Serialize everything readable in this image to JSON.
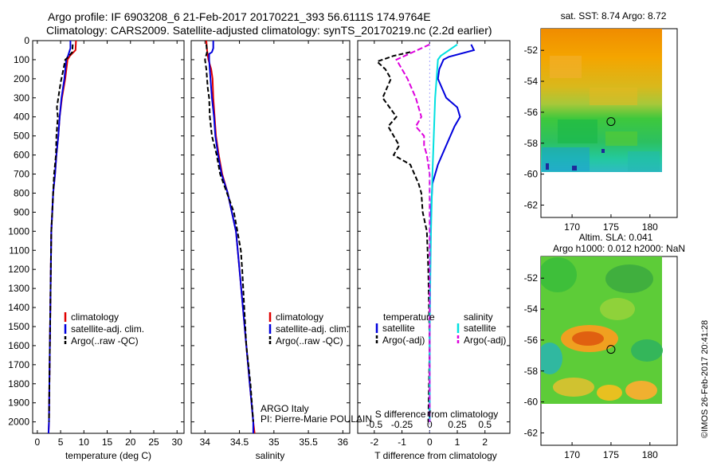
{
  "header": {
    "line1": "Argo profile: IF 6903208_6 21-Feb-2017 20170221_393 56.6111S 174.9764E",
    "line2": "Climatology: CARS2009. Satellite-adjusted climatology: synTS_20170219.nc (2.2d earlier)"
  },
  "colors": {
    "climatology": "#e00000",
    "satellite": "#0000dd",
    "argo": "#000000",
    "sal_satellite": "#00e0e0",
    "sal_argo": "#dd00dd"
  },
  "credit": "©IMOS 26-Feb-2017 20:41:28",
  "float_info": {
    "line1": "ARGO Italy",
    "line2": "PI: Pierre-Marie POULAIN"
  },
  "chart_data": [
    {
      "id": "temperature",
      "type": "line",
      "xlabel": "temperature (deg C)",
      "xlim": [
        -1,
        31.5
      ],
      "xticks": [
        0,
        5,
        10,
        15,
        20,
        25,
        30
      ],
      "ylim": [
        0,
        2060
      ],
      "yticks": [
        0,
        100,
        200,
        300,
        400,
        500,
        600,
        700,
        800,
        900,
        1000,
        1100,
        1200,
        1300,
        1400,
        1500,
        1600,
        1700,
        1800,
        1900,
        2000
      ],
      "legend": [
        "climatology",
        "satellite-adj. clim.",
        "Argo(..raw -QC)"
      ],
      "series": [
        {
          "name": "climatology",
          "color": "red",
          "points": [
            [
              8.3,
              0
            ],
            [
              8.2,
              50
            ],
            [
              7.0,
              80
            ],
            [
              6.5,
              100
            ],
            [
              6.0,
              200
            ],
            [
              5.3,
              300
            ],
            [
              4.8,
              400
            ],
            [
              4.5,
              500
            ],
            [
              4.1,
              600
            ],
            [
              3.8,
              700
            ],
            [
              3.4,
              800
            ],
            [
              3.2,
              900
            ],
            [
              3.0,
              1000
            ],
            [
              2.9,
              1200
            ],
            [
              2.8,
              1400
            ],
            [
              2.7,
              1600
            ],
            [
              2.6,
              1800
            ],
            [
              2.5,
              2000
            ],
            [
              2.4,
              2060
            ]
          ]
        },
        {
          "name": "satellite-adj. clim.",
          "color": "blue",
          "points": [
            [
              7.1,
              0
            ],
            [
              7.1,
              40
            ],
            [
              6.6,
              80
            ],
            [
              6.2,
              100
            ],
            [
              5.8,
              200
            ],
            [
              5.2,
              300
            ],
            [
              4.8,
              400
            ],
            [
              4.5,
              500
            ],
            [
              4.1,
              600
            ],
            [
              3.8,
              700
            ],
            [
              3.4,
              800
            ],
            [
              3.2,
              900
            ],
            [
              3.0,
              1000
            ],
            [
              2.9,
              1200
            ],
            [
              2.8,
              1400
            ],
            [
              2.7,
              1600
            ],
            [
              2.6,
              1800
            ],
            [
              2.5,
              2000
            ],
            [
              2.4,
              2060
            ]
          ]
        },
        {
          "name": "Argo(..raw -QC)",
          "color": "black",
          "points": [
            [
              7.6,
              20
            ],
            [
              7.5,
              60
            ],
            [
              6.5,
              90
            ],
            [
              6.0,
              100
            ],
            [
              5.6,
              150
            ],
            [
              5.0,
              220
            ],
            [
              4.5,
              300
            ],
            [
              4.2,
              350
            ],
            [
              4.4,
              400
            ],
            [
              4.1,
              500
            ],
            [
              4.0,
              600
            ],
            [
              3.6,
              700
            ],
            [
              3.4,
              800
            ],
            [
              3.2,
              900
            ],
            [
              3.0,
              1000
            ],
            [
              2.9,
              1200
            ],
            [
              2.8,
              1400
            ],
            [
              2.7,
              1600
            ],
            [
              2.6,
              1800
            ],
            [
              2.5,
              2000
            ]
          ]
        }
      ]
    },
    {
      "id": "salinity",
      "type": "line",
      "xlabel": "salinity",
      "xlim": [
        33.8,
        36.1
      ],
      "xticks": [
        34,
        34.5,
        35,
        35.5,
        36
      ],
      "ylim": [
        0,
        2060
      ],
      "legend": [
        "climatology",
        "satellite-adj. clim.",
        "Argo(..raw -QC)"
      ],
      "series": [
        {
          "name": "climatology",
          "color": "red",
          "points": [
            [
              34.02,
              0
            ],
            [
              34.03,
              50
            ],
            [
              34.05,
              100
            ],
            [
              34.09,
              150
            ],
            [
              34.11,
              200
            ],
            [
              34.12,
              300
            ],
            [
              34.14,
              400
            ],
            [
              34.16,
              500
            ],
            [
              34.2,
              600
            ],
            [
              34.25,
              700
            ],
            [
              34.33,
              800
            ],
            [
              34.39,
              900
            ],
            [
              34.45,
              1000
            ],
            [
              34.5,
              1200
            ],
            [
              34.55,
              1400
            ],
            [
              34.6,
              1600
            ],
            [
              34.65,
              1800
            ],
            [
              34.7,
              2000
            ],
            [
              34.72,
              2060
            ]
          ]
        },
        {
          "name": "satellite-adj. clim.",
          "color": "blue",
          "points": [
            [
              34.12,
              0
            ],
            [
              34.12,
              40
            ],
            [
              34.1,
              60
            ],
            [
              34.06,
              70
            ],
            [
              34.06,
              100
            ],
            [
              34.08,
              200
            ],
            [
              34.1,
              300
            ],
            [
              34.13,
              400
            ],
            [
              34.15,
              500
            ],
            [
              34.19,
              600
            ],
            [
              34.24,
              700
            ],
            [
              34.33,
              800
            ],
            [
              34.39,
              900
            ],
            [
              34.45,
              1000
            ],
            [
              34.5,
              1200
            ],
            [
              34.55,
              1400
            ],
            [
              34.6,
              1600
            ],
            [
              34.65,
              1800
            ],
            [
              34.7,
              2000
            ],
            [
              34.7,
              2060
            ]
          ]
        },
        {
          "name": "Argo(..raw -QC)",
          "color": "black",
          "points": [
            [
              34.02,
              20
            ],
            [
              34.03,
              60
            ],
            [
              34.0,
              100
            ],
            [
              34.02,
              150
            ],
            [
              34.04,
              250
            ],
            [
              34.06,
              300
            ],
            [
              34.07,
              400
            ],
            [
              34.1,
              500
            ],
            [
              34.17,
              600
            ],
            [
              34.22,
              700
            ],
            [
              34.32,
              800
            ],
            [
              34.42,
              900
            ],
            [
              34.47,
              1000
            ],
            [
              34.52,
              1100
            ],
            [
              34.54,
              1200
            ],
            [
              34.57,
              1400
            ],
            [
              34.6,
              1600
            ],
            [
              34.66,
              1800
            ],
            [
              34.7,
              2000
            ]
          ]
        }
      ]
    },
    {
      "id": "difference",
      "type": "line",
      "xlabel": "T difference from climatology",
      "xlabel_top": "S difference from climatology",
      "xlim": [
        -2.6,
        2.9
      ],
      "xticks": [
        -2,
        -1,
        0,
        1,
        2
      ],
      "xlim_top": [
        -0.65,
        0.725
      ],
      "xticks_top": [
        -0.5,
        -0.25,
        0,
        0.25,
        0.5
      ],
      "ylim": [
        0,
        2060
      ],
      "legend_group_left": "temperature",
      "legend_group_right": "salinity",
      "legend": [
        "satellite",
        "Argo(-adj)",
        "satellite",
        "Argo(-adj)"
      ],
      "series": [
        {
          "name": "temperature satellite",
          "color": "blue",
          "points": [
            [
              1.5,
              20
            ],
            [
              1.6,
              50
            ],
            [
              0.7,
              85
            ],
            [
              0.5,
              100
            ],
            [
              0.35,
              150
            ],
            [
              0.3,
              200
            ],
            [
              0.6,
              300
            ],
            [
              1.0,
              350
            ],
            [
              1.1,
              400
            ],
            [
              0.9,
              450
            ],
            [
              0.6,
              550
            ],
            [
              0.3,
              650
            ],
            [
              0.1,
              750
            ],
            [
              0.05,
              900
            ],
            [
              0.02,
              1200
            ],
            [
              0.0,
              1600
            ],
            [
              0.0,
              2000
            ]
          ]
        },
        {
          "name": "temperature Argo(-adj)",
          "color": "black",
          "points": [
            [
              -0.7,
              60
            ],
            [
              -1.3,
              80
            ],
            [
              -1.9,
              110
            ],
            [
              -1.6,
              150
            ],
            [
              -1.4,
              200
            ],
            [
              -1.7,
              300
            ],
            [
              -1.2,
              400
            ],
            [
              -1.5,
              450
            ],
            [
              -1.1,
              550
            ],
            [
              -1.3,
              600
            ],
            [
              -0.7,
              650
            ],
            [
              -0.4,
              750
            ],
            [
              -0.3,
              800
            ],
            [
              -0.25,
              900
            ],
            [
              -0.1,
              1000
            ],
            [
              -0.05,
              1200
            ],
            [
              0.0,
              1600
            ],
            [
              -0.05,
              2000
            ]
          ]
        },
        {
          "name": "salinity satellite",
          "color": "cyan",
          "points": [
            [
              1.0,
              20
            ],
            [
              0.6,
              60
            ],
            [
              0.4,
              80
            ],
            [
              0.3,
              100
            ],
            [
              0.25,
              200
            ],
            [
              0.2,
              300
            ],
            [
              0.15,
              500
            ],
            [
              0.1,
              700
            ],
            [
              0.05,
              1000
            ],
            [
              0.0,
              1500
            ],
            [
              0.0,
              2000
            ]
          ]
        },
        {
          "name": "salinity Argo(-adj)",
          "color": "magenta",
          "points": [
            [
              0.0,
              20
            ],
            [
              -0.6,
              60
            ],
            [
              -1.2,
              100
            ],
            [
              -1.0,
              150
            ],
            [
              -0.8,
              200
            ],
            [
              -0.5,
              300
            ],
            [
              -0.3,
              400
            ],
            [
              -0.5,
              450
            ],
            [
              -0.2,
              500
            ],
            [
              -0.2,
              550
            ],
            [
              -0.1,
              600
            ],
            [
              0.0,
              700
            ],
            [
              0.0,
              1000
            ],
            [
              0.0,
              2000
            ]
          ]
        }
      ]
    },
    {
      "id": "sst_map",
      "type": "heatmap",
      "title": "sat. SST: 8.74  Argo: 8.72",
      "xlim": [
        166,
        183.5
      ],
      "ylim": [
        -62.8,
        -50.6
      ],
      "xticks": [
        170,
        175,
        180
      ],
      "yticks": [
        -52,
        -54,
        -56,
        -58,
        -60,
        -62
      ],
      "marker": {
        "lon": 175,
        "lat": -56.6
      }
    },
    {
      "id": "sla_map",
      "type": "heatmap",
      "title": "Altim. SLA: 0.041",
      "subtitle": "Argo h1000: 0.012  h2000: NaN",
      "xlim": [
        166,
        183.5
      ],
      "ylim": [
        -62.8,
        -50.6
      ],
      "xticks": [
        170,
        175,
        180
      ],
      "yticks": [
        -52,
        -54,
        -56,
        -58,
        -60,
        -62
      ],
      "marker": {
        "lon": 175,
        "lat": -56.6
      }
    }
  ]
}
